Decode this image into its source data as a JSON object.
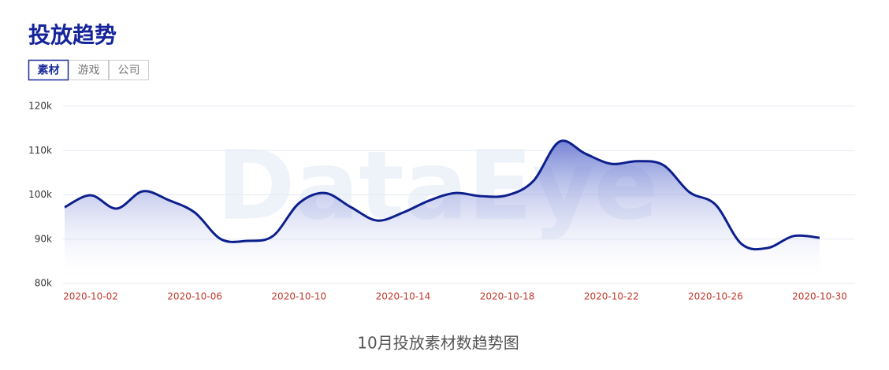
{
  "header": {
    "title": "投放趋势",
    "tabs": [
      "素材",
      "游戏",
      "公司"
    ],
    "active_tab": 0
  },
  "watermark": "DataEye",
  "chart_data": {
    "type": "line",
    "caption": "10月投放素材数趋势图",
    "categories": [
      null,
      "2020-10-02",
      null,
      null,
      null,
      "2020-10-06",
      null,
      null,
      null,
      "2020-10-10",
      null,
      null,
      null,
      "2020-10-14",
      null,
      null,
      null,
      "2020-10-18",
      null,
      null,
      null,
      "2020-10-22",
      null,
      null,
      null,
      "2020-10-26",
      null,
      null,
      null,
      "2020-10-30"
    ],
    "series": [
      {
        "name": "素材",
        "color": "#0d1f8c",
        "values": [
          97200,
          99900,
          96900,
          100800,
          98800,
          96000,
          90000,
          89600,
          90700,
          98100,
          100400,
          97200,
          94200,
          96000,
          98700,
          100400,
          99700,
          99900,
          103100,
          112000,
          109300,
          107000,
          107600,
          106700,
          100600,
          97800,
          88900,
          88000,
          90700,
          90300
        ]
      }
    ],
    "ylim": [
      80000,
      120000
    ],
    "yticks": [
      {
        "value": 80000,
        "label": "80k"
      },
      {
        "value": 90000,
        "label": "90k"
      },
      {
        "value": 100000,
        "label": "100k"
      },
      {
        "value": 110000,
        "label": "110k"
      },
      {
        "value": 120000,
        "label": "120k"
      }
    ],
    "grid": true
  }
}
